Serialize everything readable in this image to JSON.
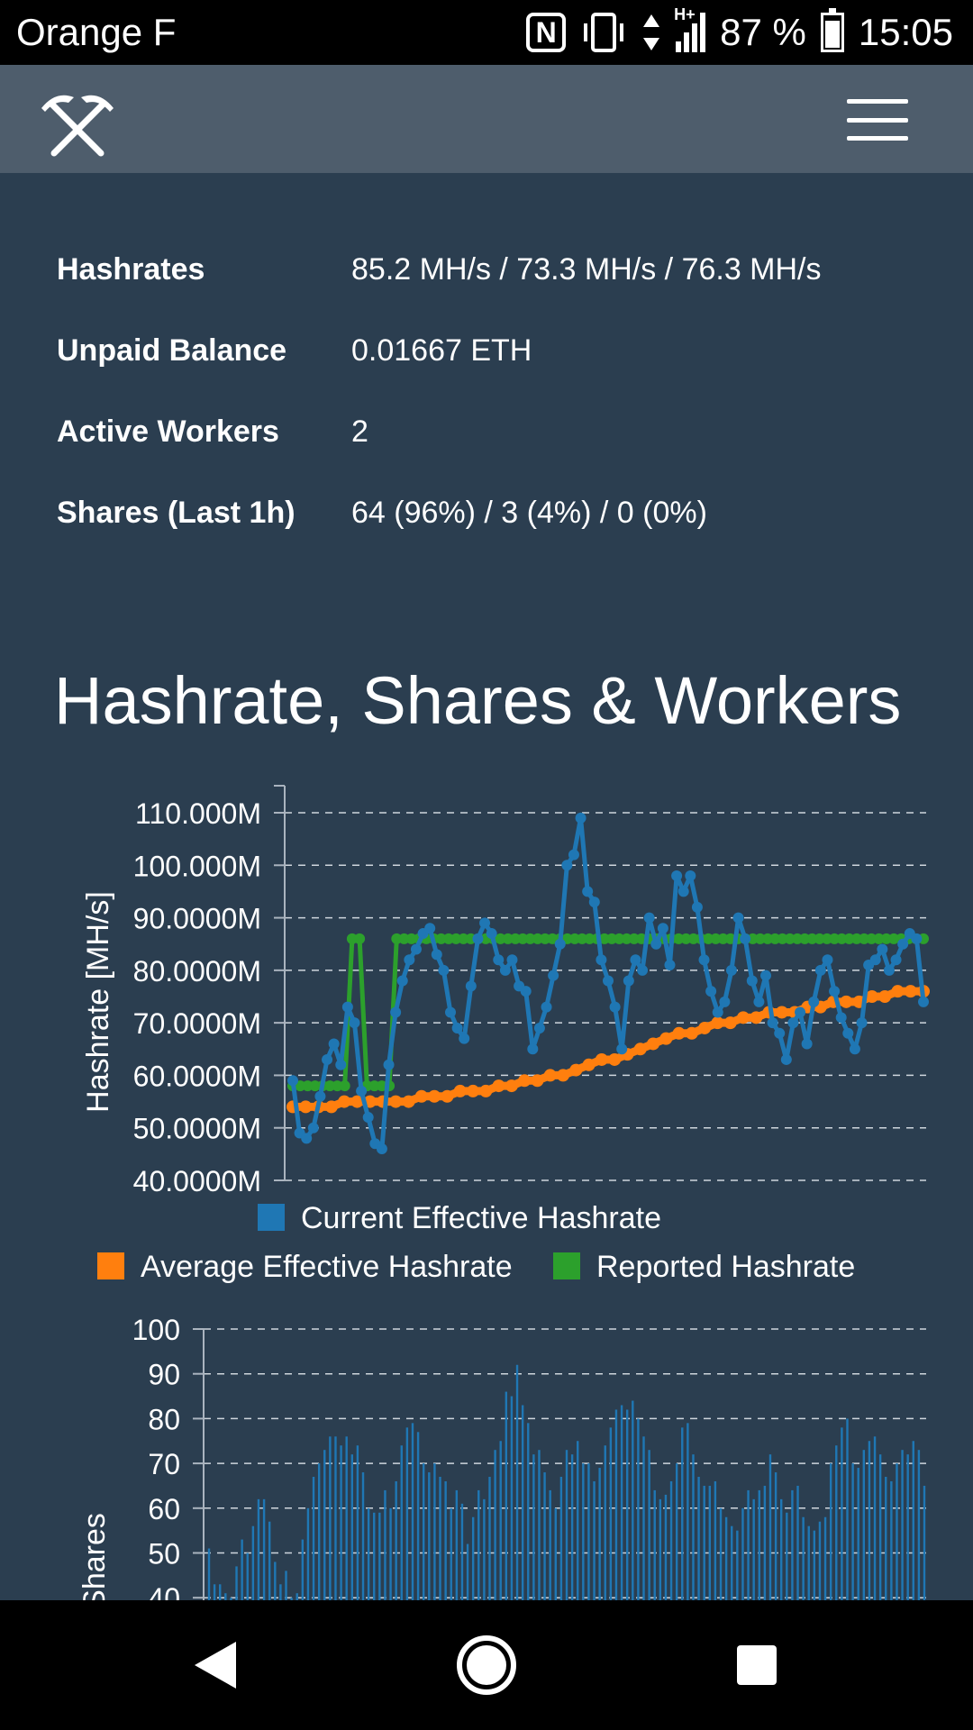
{
  "status_bar": {
    "carrier": "Orange F",
    "battery": "87 %",
    "time": "15:05",
    "network": "H+",
    "nfc": "N",
    "icons": [
      "nfc-icon",
      "vibrate-icon",
      "data-arrows-icon",
      "signal-icon",
      "battery-icon"
    ]
  },
  "navbar": {
    "logo_icon": "pickaxes-icon",
    "menu_icon": "hamburger-menu-icon"
  },
  "stats": [
    {
      "label": "Hashrates",
      "value": "85.2 MH/s / 73.3 MH/s / 76.3 MH/s"
    },
    {
      "label": "Unpaid Balance",
      "value": "0.01667 ETH"
    },
    {
      "label": "Active Workers",
      "value": "2"
    },
    {
      "label": "Shares (Last 1h)",
      "value": "64 (96%) / 3 (4%) / 0 (0%)"
    }
  ],
  "section_title": "Hashrate, Shares & Workers",
  "colors": {
    "background": "#2b3e50",
    "navbar": "#4e5d6c",
    "current": "#1f77b4",
    "average": "#ff7f0e",
    "reported": "#2ca02c"
  },
  "chart_data": [
    {
      "type": "line",
      "ylabel": "Hashrate [MH/s]",
      "ylim": [
        40000000,
        110000000
      ],
      "yticks": [
        40000000,
        50000000,
        60000000,
        70000000,
        80000000,
        90000000,
        100000000,
        110000000
      ],
      "ytick_labels": [
        "40.0000M",
        "50.0000M",
        "60.0000M",
        "70.0000M",
        "80.0000M",
        "90.0000M",
        "100.000M",
        "110.000M"
      ],
      "grid": true,
      "legend": "bottom",
      "series": [
        {
          "name": "Current Effective Hashrate",
          "color": "#1f77b4",
          "values": [
            59,
            49,
            48,
            50,
            56,
            63,
            66,
            62,
            73,
            70,
            57,
            52,
            47,
            46,
            62,
            72,
            78,
            82,
            84,
            87,
            88,
            83,
            80,
            72,
            69,
            67,
            77,
            86,
            89,
            87,
            82,
            80,
            82,
            77,
            76,
            65,
            69,
            73,
            79,
            85,
            100,
            102,
            109,
            95,
            93,
            82,
            78,
            73,
            65,
            78,
            82,
            80,
            90,
            85,
            88,
            81,
            98,
            95,
            98,
            92,
            82,
            76,
            72,
            74,
            80,
            90,
            86,
            78,
            74,
            79,
            70,
            68,
            63,
            70,
            72,
            66,
            74,
            80,
            82,
            76,
            71,
            68,
            65,
            70,
            81,
            82,
            84,
            80,
            82,
            85,
            87,
            86,
            74
          ]
        },
        {
          "name": "Average Effective Hashrate",
          "color": "#ff7f0e",
          "values": [
            54,
            54,
            54,
            54,
            55,
            55,
            55,
            55,
            55,
            55,
            56,
            56,
            56,
            57,
            57,
            57,
            58,
            58,
            59,
            59,
            60,
            60,
            61,
            62,
            63,
            63,
            64,
            65,
            66,
            67,
            68,
            68,
            69,
            70,
            70,
            71,
            71,
            72,
            72,
            72,
            73,
            73,
            74,
            74,
            74,
            75,
            75,
            76,
            76,
            76
          ]
        },
        {
          "name": "Reported Hashrate",
          "color": "#2ca02c",
          "values": [
            58,
            58,
            58,
            58,
            58,
            58,
            58,
            58,
            86,
            86,
            58,
            58,
            58,
            58,
            86,
            86,
            86,
            86,
            86,
            86,
            86,
            86,
            86,
            86,
            86,
            86,
            86,
            86,
            86,
            86,
            86,
            86,
            86,
            86,
            86,
            86,
            86,
            86,
            86,
            86,
            86,
            86,
            86,
            86,
            86,
            86,
            86,
            86,
            86,
            86,
            86,
            86,
            86,
            86,
            86,
            86,
            86,
            86,
            86,
            86,
            86,
            86,
            86,
            86,
            86,
            86,
            86,
            86,
            86,
            86,
            86,
            86,
            86,
            86,
            86,
            86,
            86,
            86,
            86,
            86,
            86,
            86,
            86,
            86,
            86,
            86
          ]
        }
      ]
    },
    {
      "type": "bar",
      "ylabel": "Shares",
      "ylim": [
        40,
        100
      ],
      "yticks": [
        40,
        50,
        60,
        70,
        80,
        90,
        100
      ],
      "ytick_labels": [
        "40",
        "50",
        "60",
        "70",
        "80",
        "90",
        "100"
      ],
      "grid": true,
      "series": [
        {
          "name": "",
          "color": "#1f77b4",
          "values": [
            51,
            43,
            43,
            41,
            40,
            47,
            53,
            50,
            56,
            62,
            62,
            57,
            48,
            43,
            46,
            40,
            41,
            53,
            60,
            67,
            70,
            73,
            76,
            76,
            74,
            76,
            72,
            74,
            68,
            60,
            59,
            59,
            64,
            60,
            66,
            74,
            78,
            79,
            77,
            70,
            68,
            70,
            67,
            66,
            60,
            64,
            61,
            52,
            58,
            64,
            62,
            67,
            73,
            75,
            86,
            85,
            92,
            83,
            79,
            72,
            73,
            68,
            64,
            60,
            67,
            73,
            72,
            75,
            70,
            70,
            66,
            69,
            74,
            78,
            82,
            83,
            82,
            84,
            80,
            76,
            73,
            64,
            62,
            63,
            66,
            70,
            78,
            79,
            72,
            67,
            65,
            65,
            66,
            60,
            58,
            56,
            55,
            60,
            64,
            62,
            64,
            65,
            72,
            68,
            62,
            59,
            64,
            65,
            58,
            56,
            55,
            57,
            58,
            70,
            74,
            78,
            80,
            70,
            69,
            73,
            75,
            76,
            72,
            67,
            66,
            70,
            73,
            72,
            75,
            73,
            65
          ]
        }
      ]
    }
  ],
  "bottom_nav": {
    "back_icon": "back-triangle-icon",
    "home_icon": "home-circle-icon",
    "recents_icon": "recents-square-icon"
  }
}
